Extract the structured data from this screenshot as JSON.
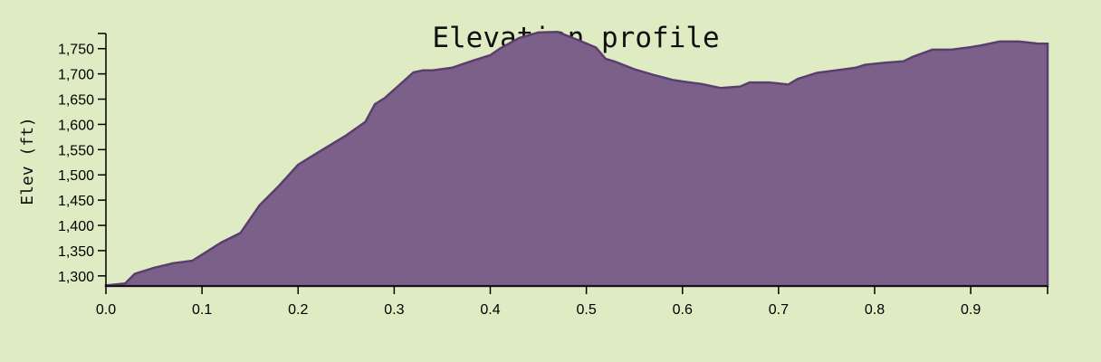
{
  "chart_data": {
    "type": "area",
    "title": "Elevation profile",
    "xlabel": "",
    "ylabel": "Elev (ft)",
    "xlim": [
      0,
      0.98
    ],
    "ylim": [
      1280,
      1780
    ],
    "x_ticks": [
      0.0,
      0.1,
      0.2,
      0.3,
      0.4,
      0.5,
      0.6,
      0.7,
      0.8,
      0.9
    ],
    "x_tick_labels": [
      "0.0",
      "0.1",
      "0.2",
      "0.3",
      "0.4",
      "0.5",
      "0.6",
      "0.7",
      "0.8",
      "0.9"
    ],
    "y_ticks": [
      1300,
      1350,
      1400,
      1450,
      1500,
      1550,
      1600,
      1650,
      1700,
      1750
    ],
    "y_tick_labels": [
      "1,300",
      "1,350",
      "1,400",
      "1,450",
      "1,500",
      "1,550",
      "1,600",
      "1,650",
      "1,700",
      "1,750"
    ],
    "grid": false,
    "colors": {
      "fill": "#7b6189",
      "stroke": "#5a3f6e",
      "background": "#dfebc3"
    },
    "series": [
      {
        "x": [
          0.0,
          0.02,
          0.03,
          0.05,
          0.07,
          0.09,
          0.1,
          0.12,
          0.14,
          0.16,
          0.18,
          0.2,
          0.21,
          0.23,
          0.25,
          0.27,
          0.28,
          0.29,
          0.31,
          0.32,
          0.33,
          0.34,
          0.36,
          0.38,
          0.4,
          0.41,
          0.43,
          0.45,
          0.47,
          0.49,
          0.51,
          0.52,
          0.53,
          0.55,
          0.57,
          0.59,
          0.6,
          0.62,
          0.64,
          0.66,
          0.67,
          0.69,
          0.71,
          0.72,
          0.74,
          0.76,
          0.78,
          0.79,
          0.81,
          0.83,
          0.84,
          0.86,
          0.88,
          0.9,
          0.91,
          0.93,
          0.95,
          0.97,
          0.98
        ],
        "values": [
          1281,
          1285,
          1304,
          1316,
          1325,
          1330,
          1342,
          1366,
          1385,
          1440,
          1478,
          1520,
          1532,
          1555,
          1578,
          1605,
          1640,
          1652,
          1686,
          1703,
          1707,
          1707,
          1712,
          1725,
          1737,
          1750,
          1771,
          1782,
          1783,
          1768,
          1752,
          1730,
          1724,
          1709,
          1698,
          1688,
          1685,
          1680,
          1672,
          1675,
          1683,
          1683,
          1679,
          1690,
          1702,
          1707,
          1712,
          1718,
          1722,
          1725,
          1734,
          1748,
          1748,
          1753,
          1756,
          1764,
          1764,
          1760,
          1760
        ]
      }
    ]
  }
}
